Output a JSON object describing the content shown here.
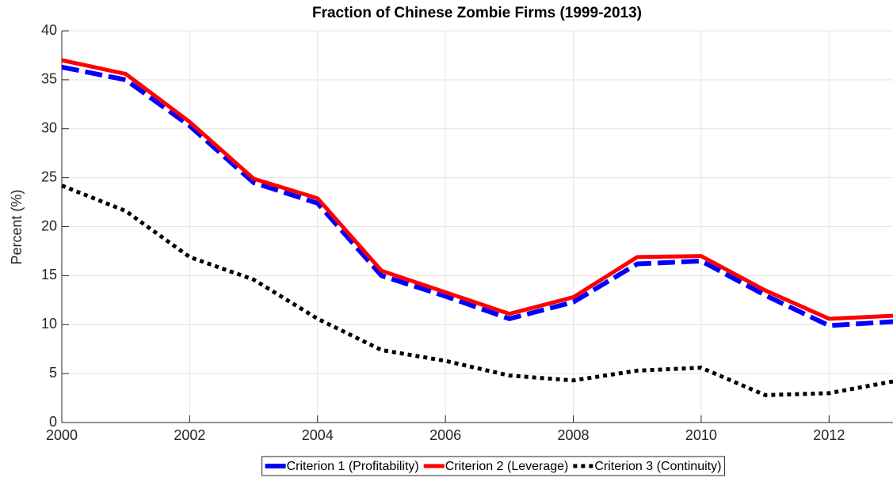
{
  "chart_data": {
    "type": "line",
    "title": "Fraction of Chinese Zombie Firms (1999-2013)",
    "y_label": "Percent (%)",
    "x": [
      2000,
      2001,
      2002,
      2003,
      2004,
      2005,
      2006,
      2007,
      2008,
      2009,
      2010,
      2011,
      2012,
      2013
    ],
    "series": [
      {
        "name": "Criterion 1 (Profitability)",
        "color": "#0000ff",
        "values": [
          36.3,
          35.0,
          30.3,
          24.5,
          22.4,
          15.0,
          12.9,
          10.6,
          12.3,
          16.2,
          16.5,
          13.0,
          9.9,
          10.3
        ]
      },
      {
        "name": "Criterion 2 (Leverage)",
        "color": "#ff0000",
        "values": [
          37.0,
          35.6,
          30.7,
          24.9,
          22.9,
          15.5,
          13.3,
          11.1,
          12.8,
          16.9,
          17.0,
          13.5,
          10.6,
          10.9
        ]
      },
      {
        "name": "Criterion 3 (Continuity)",
        "color": "#000000",
        "values": [
          24.2,
          21.6,
          16.9,
          14.6,
          10.6,
          7.4,
          6.3,
          4.8,
          4.3,
          5.3,
          5.6,
          2.8,
          3.0,
          4.2
        ]
      }
    ],
    "xlim": [
      2000,
      2013
    ],
    "xticks": [
      2000,
      2002,
      2004,
      2006,
      2008,
      2010,
      2012
    ],
    "ylim": [
      0,
      40
    ],
    "yticks": [
      0,
      5,
      10,
      15,
      20,
      25,
      30,
      35,
      40
    ],
    "grid": true,
    "legend": "bottom"
  }
}
